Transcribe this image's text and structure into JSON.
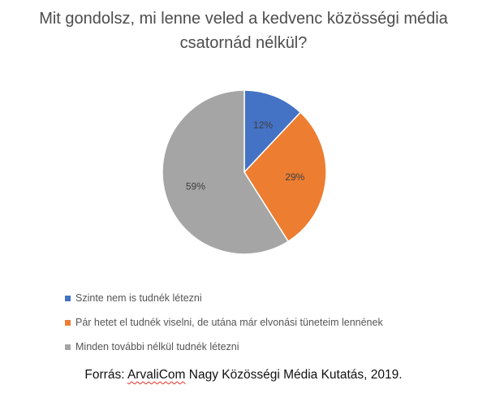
{
  "chart_data": {
    "type": "pie",
    "title_line1": "Mit gondolsz, mi lenne veled a kedvenc közösségi média",
    "title_line2": "csatornád nélkül?",
    "slices": [
      {
        "label": "Szinte nem is tudnék létezni",
        "value": 12,
        "value_label": "12%",
        "color": "#4472c4"
      },
      {
        "label": "Pár hetet el tudnék viselni, de utána már elvonási tüneteim lennének",
        "value": 29,
        "value_label": "29%",
        "color": "#ed7d31"
      },
      {
        "label": "Minden további nélkül tudnék létezni",
        "value": 59,
        "value_label": "59%",
        "color": "#a5a5a5"
      }
    ],
    "legend_position": "bottom"
  },
  "source": {
    "prefix": "Forrás: ",
    "brand": "ArvaliCom",
    "suffix": " Nagy Közösségi Média Kutatás, 2019."
  }
}
